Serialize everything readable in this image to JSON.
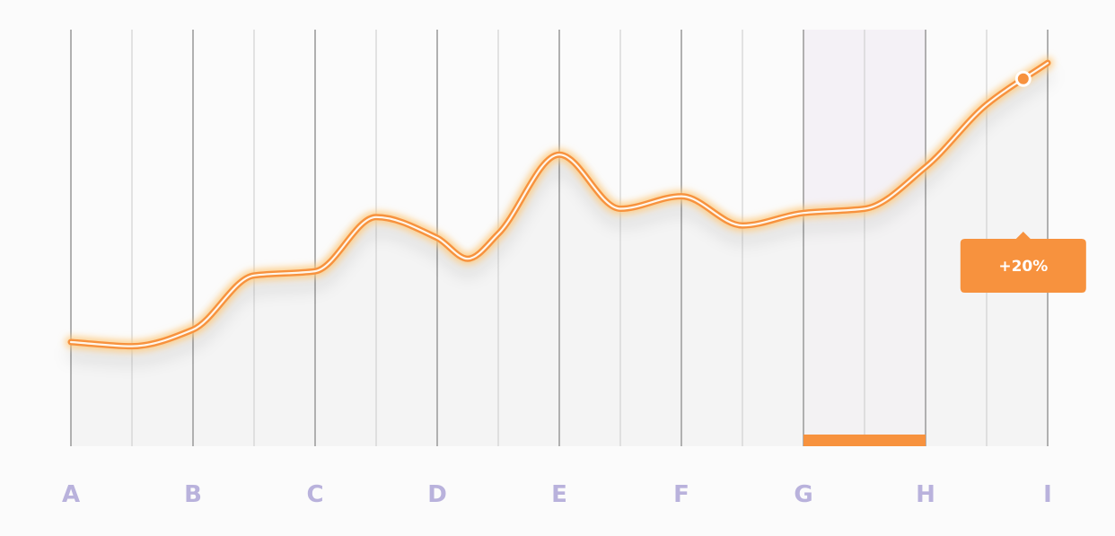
{
  "chart_data": {
    "type": "line",
    "title": "",
    "xlabel": "",
    "ylabel": "",
    "categories": [
      "A",
      "B",
      "C",
      "D",
      "E",
      "F",
      "G",
      "H",
      "I"
    ],
    "x": [
      0,
      0.5,
      1,
      1.5,
      2,
      2.5,
      3,
      3.25,
      3.5,
      4,
      4.5,
      5,
      5.5,
      6,
      6.5,
      7,
      7.5,
      8
    ],
    "series": [
      {
        "values": [
          25,
          24,
          28,
          41,
          42,
          55,
          50,
          45,
          51,
          70,
          57,
          60,
          53,
          56,
          57,
          67,
          82,
          92
        ]
      }
    ],
    "ylim": [
      0,
      100
    ],
    "grid": "vertical",
    "highlight": {
      "range": [
        "G",
        "H"
      ],
      "label": "+20%",
      "marker_x": 7.8
    },
    "colors": {
      "line": "#f7923e",
      "line_core": "#fff6ea",
      "glow": "#ffc97a",
      "area": "#f2f2f2",
      "grid_major": "#9e9e9e",
      "grid_minor": "#d4d4d4",
      "highlight_band": "#f4f1f6",
      "highlight_bar": "#f7923e",
      "tick_label": "#b9b2dc",
      "tooltip_bg": "#f7923e",
      "tooltip_text": "#ffffff",
      "background": "#fbfbfb"
    }
  }
}
